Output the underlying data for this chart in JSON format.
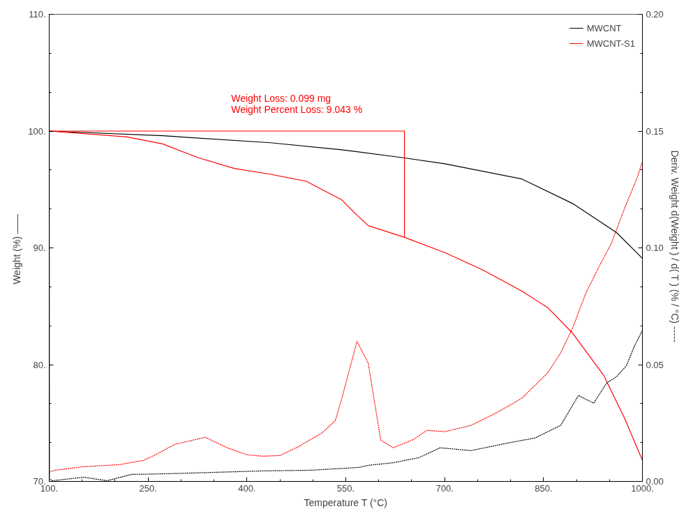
{
  "chart_data": {
    "type": "line",
    "xlabel": "Temperature T (°C)",
    "ylabel": "Weight  (%) ——",
    "y2label": "Deriv. Weight d(Weight ) / d( T )  (% / °C) -----",
    "xlim": [
      100,
      1000
    ],
    "xticks": [
      {
        "value": 100,
        "label": "100."
      },
      {
        "value": 250,
        "label": "250."
      },
      {
        "value": 400,
        "label": "400."
      },
      {
        "value": 550,
        "label": "550."
      },
      {
        "value": 700,
        "label": "700."
      },
      {
        "value": 850,
        "label": "850."
      },
      {
        "value": 1000,
        "label": "1000."
      }
    ],
    "ylim": [
      70,
      110
    ],
    "yticks": [
      {
        "value": 70,
        "label": "70."
      },
      {
        "value": 80,
        "label": "80."
      },
      {
        "value": 90,
        "label": "90."
      },
      {
        "value": 100,
        "label": "100."
      },
      {
        "value": 110,
        "label": "110."
      }
    ],
    "y2lim": [
      0,
      0.2
    ],
    "y2ticks": [
      {
        "value": 0,
        "label": "0.00"
      },
      {
        "value": 0.05,
        "label": "0.05"
      },
      {
        "value": 0.1,
        "label": "0.10"
      },
      {
        "value": 0.15,
        "label": "0.15"
      },
      {
        "value": 0.2,
        "label": "0.20"
      }
    ],
    "legend": "top right",
    "grid": false,
    "annotations": [
      "Weight Loss: 0.099 mg",
      "Weight Percent Loss: 9.043 %"
    ],
    "series": [
      {
        "name": "MWCNT",
        "color": "#000000",
        "line_style": "solid",
        "x": [
          100,
          272,
          436,
          544,
          639,
          700,
          817,
          894,
          961,
          1000
        ],
        "values": [
          100,
          99.6,
          99.0,
          98.4,
          97.7,
          97.2,
          95.9,
          93.8,
          91.3,
          89.1
        ]
      },
      {
        "name": "MWCNT-S1",
        "color": "#ff0000",
        "line_style": "solid",
        "x": [
          100,
          218,
          272,
          327,
          381,
          436,
          490,
          544,
          567,
          584,
          639,
          700,
          758,
          817,
          856,
          894,
          941,
          973,
          1000
        ],
        "values": [
          100,
          99.5,
          98.9,
          97.7,
          96.8,
          96.3,
          95.7,
          94.1,
          92.8,
          91.9,
          90.9,
          89.6,
          88.1,
          86.3,
          84.9,
          82.7,
          79.1,
          75.4,
          71.8
        ]
      },
      {
        "color": "#000000",
        "line_style": "dashed",
        "axis": "y2",
        "x": [
          100,
          100.5,
          105,
          152,
          188,
          225,
          280,
          352,
          425,
          498,
          570,
          584,
          622,
          661,
          693,
          740,
          797,
          837,
          876,
          894,
          903,
          926,
          946,
          961,
          976,
          988,
          1000
        ],
        "values": [
          0.178,
          0.001,
          0.0003,
          0.0018,
          0.0003,
          0.003,
          0.0033,
          0.0039,
          0.0045,
          0.0048,
          0.006,
          0.0069,
          0.008,
          0.0102,
          0.0144,
          0.0132,
          0.0165,
          0.0186,
          0.024,
          0.0326,
          0.0368,
          0.0335,
          0.0422,
          0.0449,
          0.0497,
          0.058,
          0.0647
        ]
      },
      {
        "color": "#ff0000",
        "line_style": "dashed",
        "axis": "y2",
        "x": [
          100,
          109,
          152,
          207,
          243,
          261,
          291,
          323,
          337,
          370,
          400,
          425,
          450,
          479,
          515,
          534,
          544,
          567,
          584,
          603,
          622,
          653,
          673,
          700,
          740,
          778,
          817,
          856,
          876,
          894,
          914,
          933,
          953,
          973,
          992,
          1000
        ],
        "values": [
          0.004,
          0.0048,
          0.0063,
          0.0072,
          0.009,
          0.0114,
          0.0159,
          0.018,
          0.0189,
          0.0144,
          0.0114,
          0.0108,
          0.0111,
          0.015,
          0.021,
          0.026,
          0.0356,
          0.06,
          0.0506,
          0.0177,
          0.0144,
          0.018,
          0.0219,
          0.0213,
          0.024,
          0.0293,
          0.0356,
          0.0464,
          0.055,
          0.0656,
          0.0805,
          0.0913,
          0.102,
          0.117,
          0.13,
          0.137
        ]
      },
      {
        "color": "#ff0000",
        "line_style": "solid",
        "x": [
          100,
          639,
          639
        ],
        "values": [
          100,
          100,
          90.9
        ]
      }
    ]
  }
}
